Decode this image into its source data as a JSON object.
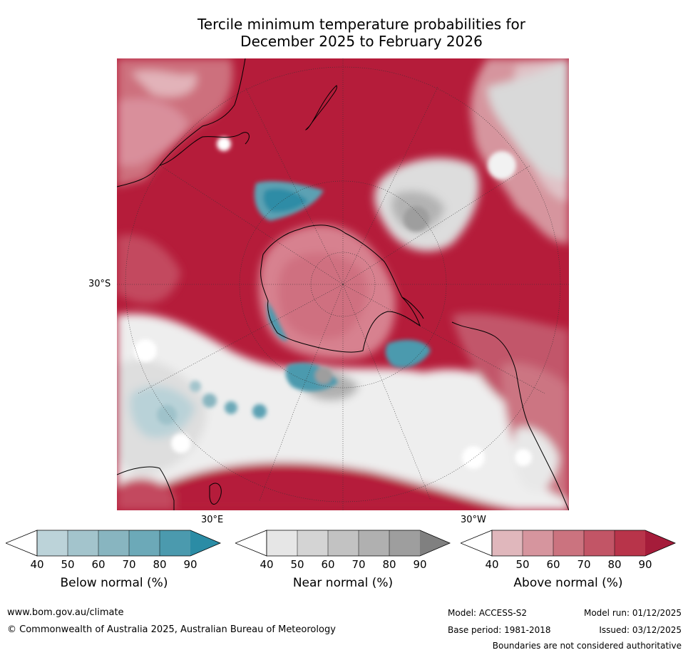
{
  "title": {
    "line1": "Tercile minimum temperature probabilities for",
    "line2": "December 2025 to February 2026"
  },
  "map": {
    "lat_label": "30°S",
    "lon_label_east": "30°E",
    "lon_label_west": "30°W",
    "colors": {
      "above": [
        "#e0b7bc",
        "#d6959e",
        "#cb737f",
        "#c25566",
        "#b8344a",
        "#a51c3a"
      ],
      "near": [
        "#e6e6e6",
        "#d4d4d4",
        "#c2c2c2",
        "#b0b0b0",
        "#9e9e9e",
        "#808080"
      ],
      "below": [
        "#bcd3d9",
        "#a3c4cc",
        "#88b5c0",
        "#6ca9b8",
        "#4b9aae",
        "#2b8ca5"
      ]
    }
  },
  "colorbars": [
    {
      "name": "Below normal (%)",
      "ticks": [
        "40",
        "50",
        "60",
        "70",
        "80",
        "90"
      ],
      "colors": [
        "#bcd3d9",
        "#a3c4cc",
        "#88b5c0",
        "#6ca9b8",
        "#4b9aae",
        "#2b8ca5"
      ]
    },
    {
      "name": "Near normal (%)",
      "ticks": [
        "40",
        "50",
        "60",
        "70",
        "80",
        "90"
      ],
      "colors": [
        "#e6e6e6",
        "#d4d4d4",
        "#c2c2c2",
        "#b0b0b0",
        "#9e9e9e",
        "#808080"
      ]
    },
    {
      "name": "Above normal (%)",
      "ticks": [
        "40",
        "50",
        "60",
        "70",
        "80",
        "90"
      ],
      "colors": [
        "#e0b7bc",
        "#d6959e",
        "#cb737f",
        "#c25566",
        "#b8344a",
        "#a51c3a"
      ]
    }
  ],
  "footer": {
    "website": "www.bom.gov.au/climate",
    "copyright": "© Commonwealth of Australia 2025, Australian Bureau of Meteorology",
    "model": "Model: ACCESS-S2",
    "base_period": "Base period: 1981-2018",
    "model_run": "Model run: 01/12/2025",
    "issued": "Issued: 03/12/2025",
    "disclaimer": "Boundaries are not considered authoritative"
  }
}
